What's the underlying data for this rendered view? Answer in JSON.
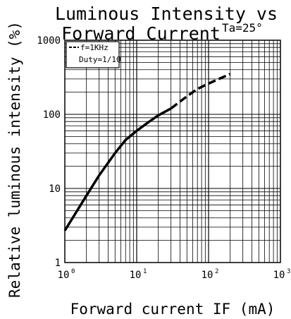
{
  "chart_data": {
    "type": "line",
    "title_lines": [
      "Luminous Intensity vs",
      "Forward Current"
    ],
    "condition": "Ta=25°",
    "xlabel": "Forward current IF (mA)",
    "ylabel": "Relative luminous intensity (%)",
    "x_scale": "log",
    "y_scale": "log",
    "xlim": [
      1,
      1000
    ],
    "ylim": [
      1,
      1000
    ],
    "grid": true,
    "x_ticks": [
      {
        "base": "10",
        "exp": "0"
      },
      {
        "base": "10",
        "exp": "1"
      },
      {
        "base": "10",
        "exp": "2"
      },
      {
        "base": "10",
        "exp": "3"
      }
    ],
    "y_ticks": [
      "1",
      "10",
      "100",
      "1000"
    ],
    "legend": {
      "position": "top-left",
      "lines": [
        "f=1KHz",
        "Duty=1/10"
      ]
    },
    "series": [
      {
        "style": "solid",
        "x": [
          1,
          2,
          3,
          5,
          7,
          10,
          15,
          20,
          30
        ],
        "y": [
          2.7,
          8,
          15,
          30,
          45,
          60,
          80,
          97,
          120
        ]
      },
      {
        "style": "dashed",
        "x": [
          30,
          50,
          70,
          100,
          150,
          200
        ],
        "y": [
          120,
          175,
          220,
          260,
          310,
          350
        ]
      }
    ]
  }
}
